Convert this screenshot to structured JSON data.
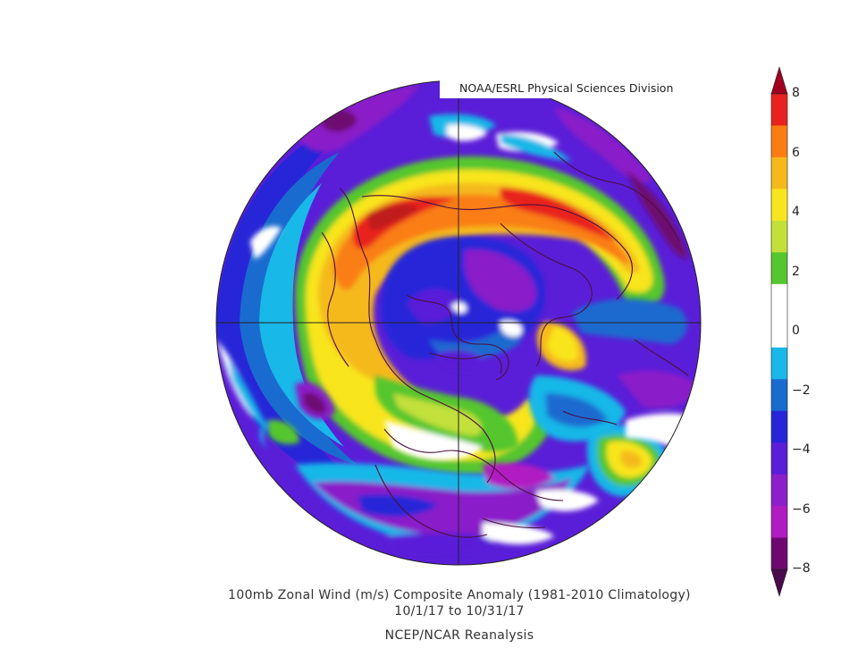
{
  "credit": "NOAA/ESRL Physical Sciences Division",
  "caption": {
    "title": "100mb Zonal Wind (m/s) Composite Anomaly (1981-2010 Climatology)",
    "dates": "10/1/17  to 10/31/17",
    "source": "NCEP/NCAR Reanalysis"
  },
  "colorbar": {
    "labels": [
      "8",
      "6",
      "4",
      "2",
      "0",
      "−2",
      "−4",
      "−6",
      "−8"
    ],
    "colors": [
      "#a0001e",
      "#e8231f",
      "#fa7d14",
      "#f5b91c",
      "#f8e51f",
      "#c3e03a",
      "#55c62f",
      "#ffffff",
      "#ffffff",
      "#18b8e8",
      "#1a6bcf",
      "#2626d8",
      "#5a1ed8",
      "#8b1fc9",
      "#b11bc2",
      "#6e0870",
      "#4a0a4e"
    ]
  },
  "colors": {
    "background": "#ffffff",
    "outline": "#4a1040",
    "grid": "#222222"
  }
}
